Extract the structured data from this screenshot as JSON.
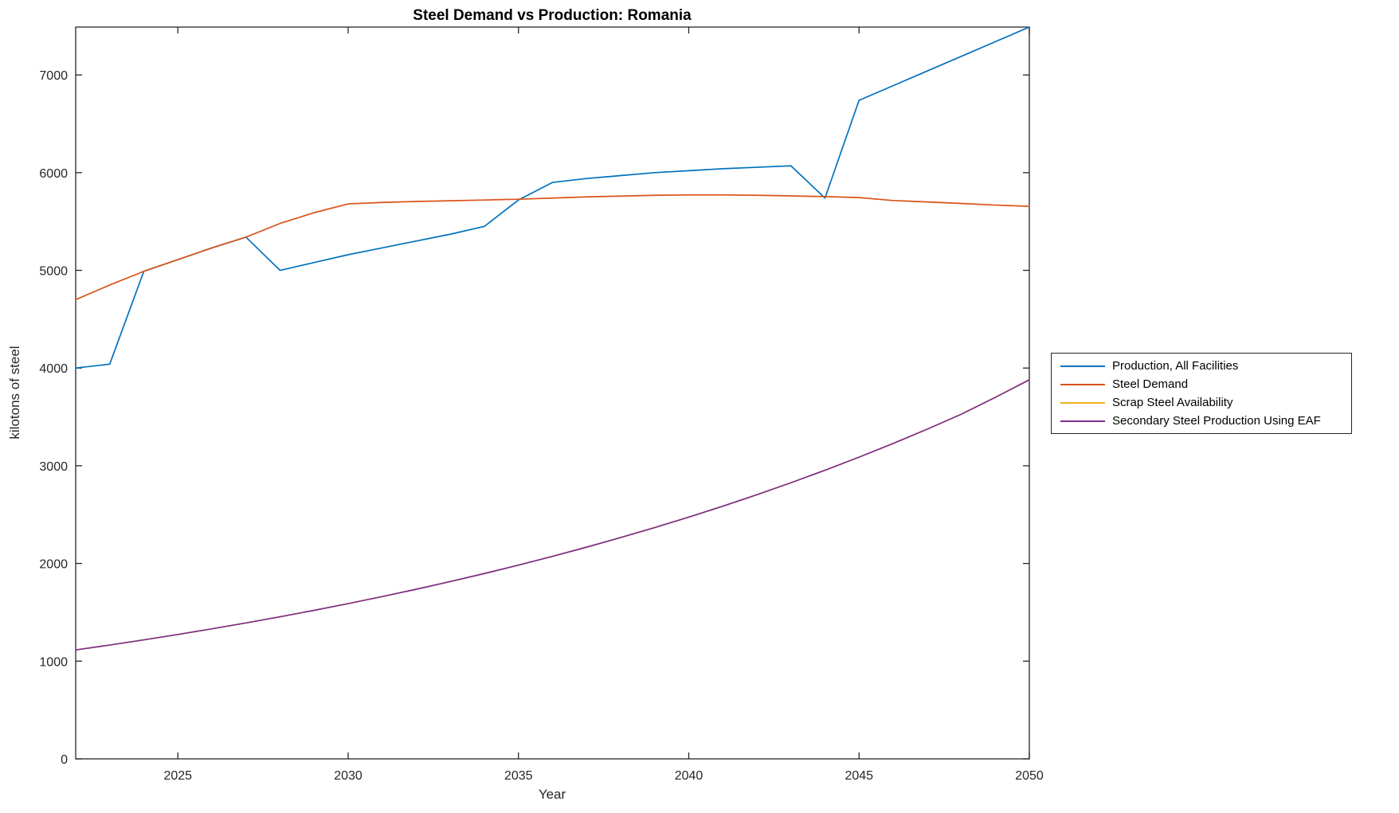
{
  "figure": {
    "background": "#ffffff"
  },
  "chart_data": {
    "type": "line",
    "title": "Steel Demand vs Production: Romania",
    "xlabel": "Year",
    "ylabel": "kilotons of steel",
    "xlim": [
      2022,
      2050
    ],
    "ylim": [
      0,
      7490
    ],
    "xticks": [
      2025,
      2030,
      2035,
      2040,
      2045,
      2050
    ],
    "yticks": [
      0,
      1000,
      2000,
      3000,
      4000,
      5000,
      6000,
      7000
    ],
    "grid": false,
    "legend_position": "outside-right",
    "axis_color": "#262626",
    "x": [
      2022,
      2023,
      2024,
      2025,
      2026,
      2027,
      2028,
      2029,
      2030,
      2031,
      2032,
      2033,
      2034,
      2035,
      2036,
      2037,
      2038,
      2039,
      2040,
      2041,
      2042,
      2043,
      2044,
      2045,
      2046,
      2047,
      2048,
      2049,
      2050
    ],
    "series": [
      {
        "name": "Production, All Facilities",
        "color": "#0072BD",
        "values": [
          4000,
          4040,
          4990,
          5110,
          5230,
          5340,
          5000,
          5080,
          5160,
          5230,
          5300,
          5370,
          5450,
          5720,
          5900,
          5940,
          5970,
          6000,
          6020,
          6040,
          6055,
          6070,
          5740,
          6740,
          6890,
          7040,
          7190,
          7340,
          7490
        ]
      },
      {
        "name": "Steel Demand",
        "color": "#D95319",
        "values": [
          4700,
          4850,
          4990,
          5110,
          5230,
          5340,
          5480,
          5590,
          5680,
          5695,
          5705,
          5712,
          5720,
          5728,
          5740,
          5752,
          5760,
          5768,
          5772,
          5772,
          5768,
          5762,
          5755,
          5745,
          5715,
          5700,
          5685,
          5668,
          5655
        ]
      },
      {
        "name": "Scrap Steel Availability",
        "color": "#EDB120",
        "values": [
          1115,
          1165,
          1218,
          1273,
          1331,
          1391,
          1454,
          1520,
          1589,
          1661,
          1736,
          1815,
          1897,
          1983,
          2073,
          2167,
          2265,
          2367,
          2474,
          2586,
          2703,
          2826,
          2954,
          3088,
          3228,
          3374,
          3527,
          3700,
          3880
        ]
      },
      {
        "name": "Secondary Steel Production Using EAF",
        "color": "#7E2F8E",
        "values": [
          1115,
          1165,
          1218,
          1273,
          1331,
          1391,
          1454,
          1520,
          1589,
          1661,
          1736,
          1815,
          1897,
          1983,
          2073,
          2167,
          2265,
          2367,
          2474,
          2586,
          2703,
          2826,
          2954,
          3088,
          3228,
          3374,
          3527,
          3700,
          3880
        ]
      }
    ]
  }
}
